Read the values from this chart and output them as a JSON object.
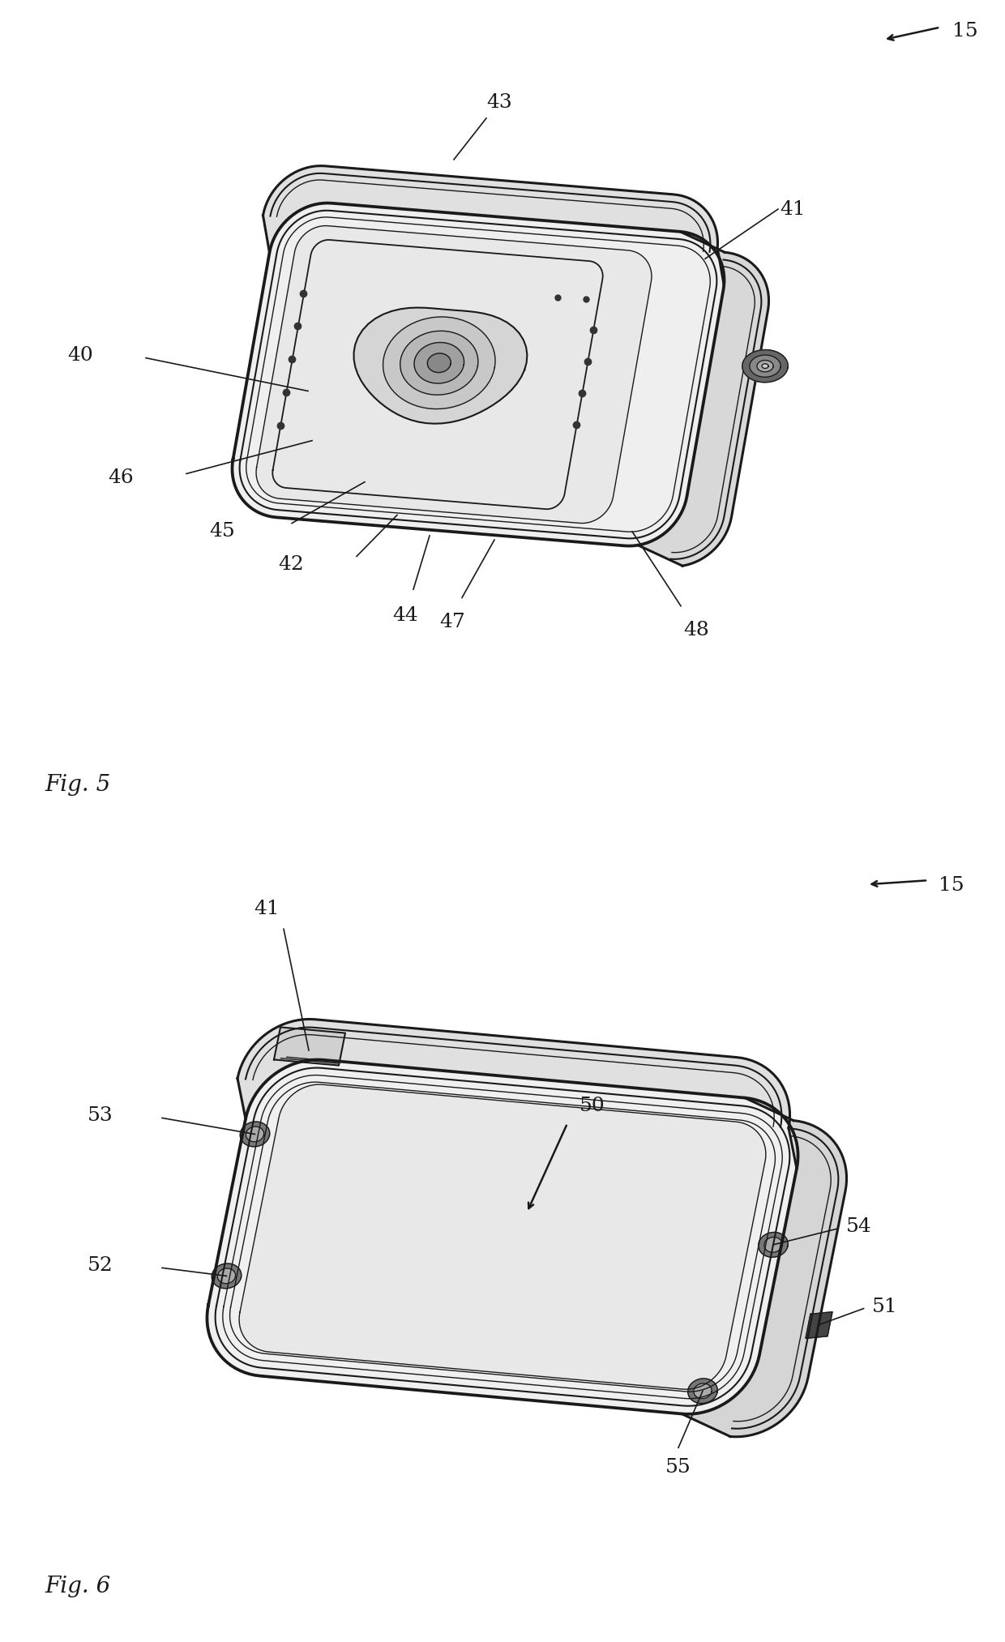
{
  "background_color": "#ffffff",
  "line_color": "#1a1a1a",
  "fig5_caption": "Fig. 5",
  "fig6_caption": "Fig. 6",
  "font_size": 18,
  "caption_font_size": 20
}
